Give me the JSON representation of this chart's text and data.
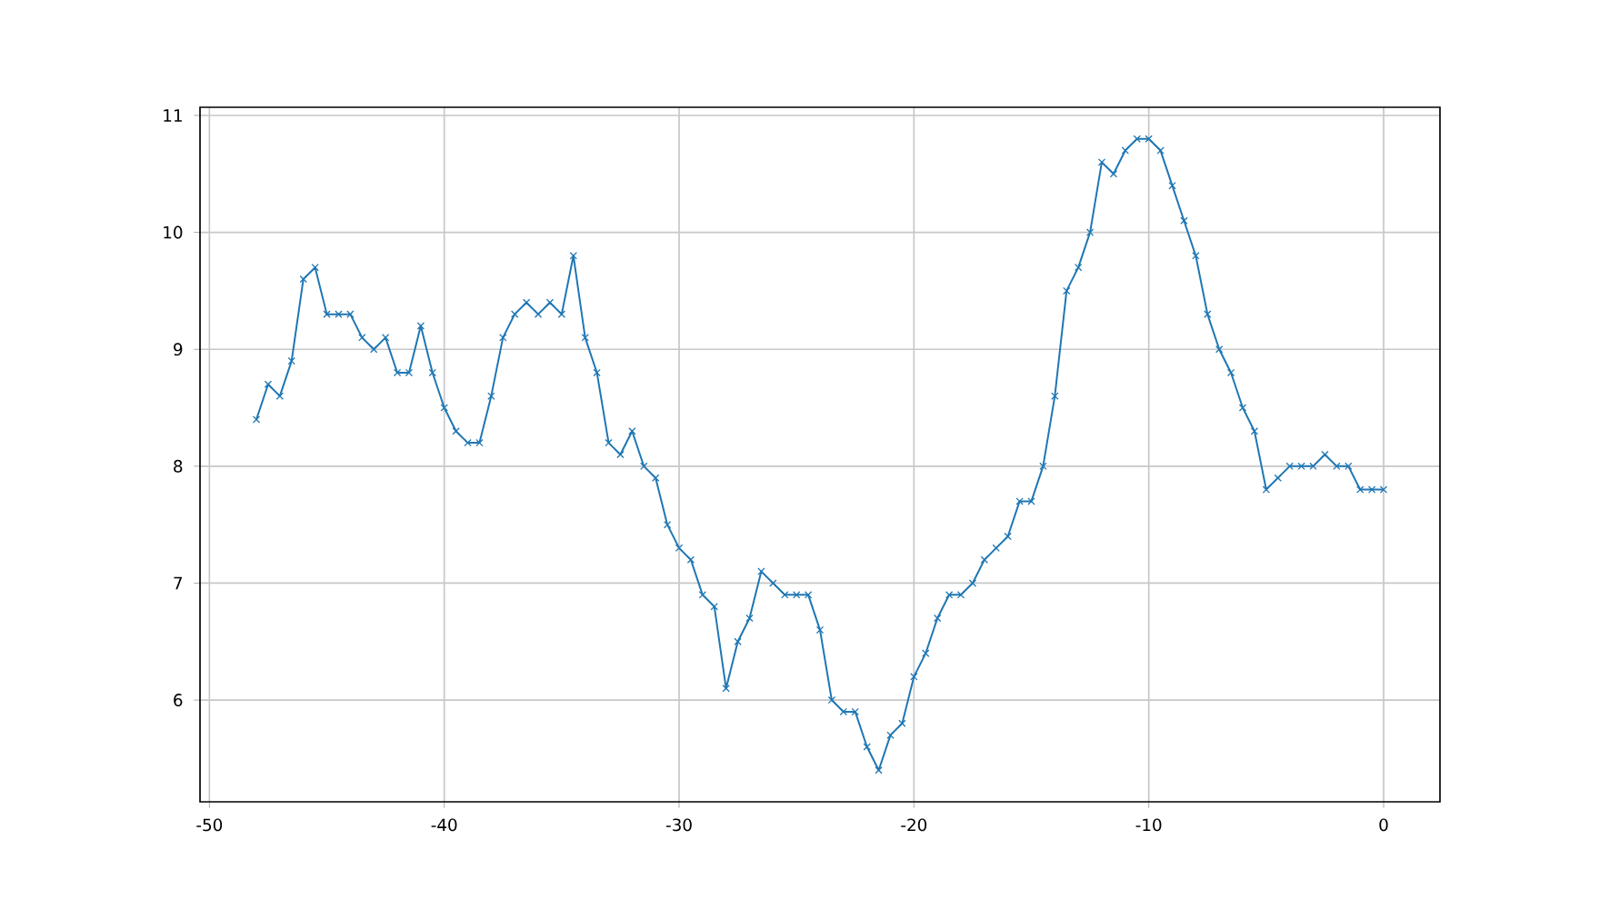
{
  "chart_data": {
    "type": "line",
    "x": [
      -48,
      -47.5,
      -47,
      -46.5,
      -46,
      -45.5,
      -45,
      -44.5,
      -44,
      -43.5,
      -43,
      -42.5,
      -42,
      -41.5,
      -41,
      -40.5,
      -40,
      -39.5,
      -39,
      -38.5,
      -38,
      -37.5,
      -37,
      -36.5,
      -36,
      -35.5,
      -35,
      -34.5,
      -34,
      -33.5,
      -33,
      -32.5,
      -32,
      -31.5,
      -31,
      -30.5,
      -30,
      -29.5,
      -29,
      -28.5,
      -28,
      -27.5,
      -27,
      -26.5,
      -26,
      -25.5,
      -25,
      -24.5,
      -24,
      -23.5,
      -23,
      -22.5,
      -22,
      -21.5,
      -21,
      -20.5,
      -20,
      -19.5,
      -19,
      -18.5,
      -18,
      -17.5,
      -17,
      -16.5,
      -16,
      -15.5,
      -15,
      -14.5,
      -14,
      -13.5,
      -13,
      -12.5,
      -12,
      -11.5,
      -11,
      -10.5,
      -10,
      -9.5,
      -9,
      -8.5,
      -8,
      -7.5,
      -7,
      -6.5,
      -6,
      -5.5,
      -5,
      -4.5,
      -4,
      -3.5,
      -3,
      -2.5,
      -2,
      -1.5,
      -1,
      -0.5,
      0
    ],
    "series": [
      {
        "color": "#1f77b4",
        "values": [
          8.4,
          8.7,
          8.6,
          8.9,
          9.6,
          9.7,
          9.3,
          9.3,
          9.3,
          9.1,
          9.0,
          9.1,
          8.8,
          8.8,
          9.2,
          8.8,
          8.5,
          8.3,
          8.2,
          8.2,
          8.6,
          9.1,
          9.3,
          9.4,
          9.3,
          9.4,
          9.3,
          9.8,
          9.1,
          8.8,
          8.2,
          8.1,
          8.3,
          8.0,
          7.9,
          7.5,
          7.3,
          7.2,
          6.9,
          6.8,
          6.1,
          6.5,
          6.7,
          7.1,
          7.0,
          6.9,
          6.9,
          6.9,
          6.6,
          6.0,
          5.9,
          5.9,
          5.6,
          5.4,
          5.7,
          5.8,
          6.2,
          6.4,
          6.7,
          6.9,
          6.9,
          7.0,
          7.2,
          7.3,
          7.4,
          7.7,
          7.7,
          8.0,
          8.6,
          9.5,
          9.7,
          10.0,
          10.6,
          10.5,
          10.7,
          10.8,
          10.8,
          10.7,
          10.4,
          10.1,
          9.8,
          9.3,
          9.0,
          8.8,
          8.5,
          8.3,
          7.8,
          7.9,
          8.0,
          8.0,
          8.0,
          8.1,
          8.0,
          8.0,
          7.8,
          7.8,
          7.8
        ]
      }
    ],
    "xlim": [
      -50.4,
      2.4
    ],
    "ylim": [
      5.13,
      11.07
    ],
    "xticks": [
      -50,
      -40,
      -30,
      -20,
      -10,
      0
    ],
    "yticks": [
      6,
      7,
      8,
      9,
      10,
      11
    ],
    "grid": true,
    "marker": "cross",
    "line_style": "solid"
  }
}
